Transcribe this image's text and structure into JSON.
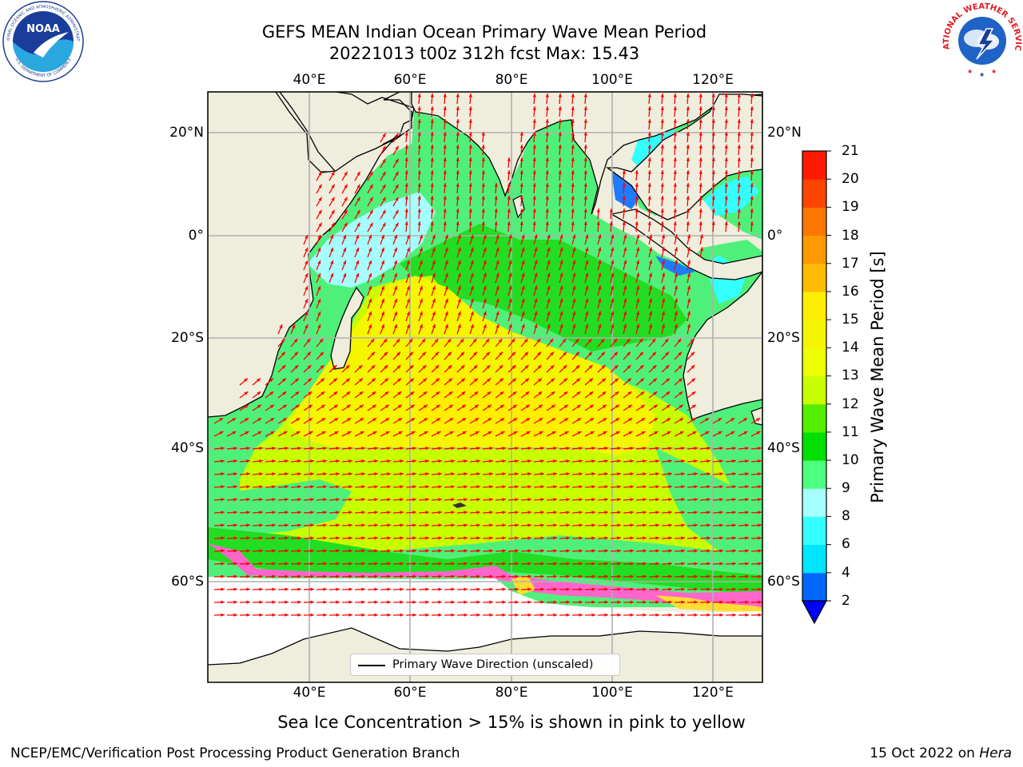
{
  "title": {
    "line1": "GEFS MEAN Indian Ocean Primary Wave Mean Period",
    "line2": "20221013 t00z 312h fcst   Max: 15.43"
  },
  "map": {
    "lon_ticks_top": [
      "40°E",
      "60°E",
      "80°E",
      "100°E",
      "120°E"
    ],
    "lon_ticks_bottom": [
      "40°E",
      "60°E",
      "80°E",
      "100°E",
      "120°E"
    ],
    "lat_ticks_left": [
      "20°N",
      "0°",
      "20°S",
      "40°S",
      "60°S"
    ],
    "lat_ticks_right": [
      "20°N",
      "0°",
      "20°S",
      "40°S",
      "60°S"
    ],
    "lon_values": [
      40,
      60,
      80,
      100,
      120
    ],
    "lat_values": [
      20,
      0,
      -20,
      -40,
      -60
    ],
    "extent_lon": [
      20,
      130
    ],
    "grid": true,
    "legend_label": "Primary Wave Direction (unscaled)",
    "legend_position": "bottom-center",
    "field_max_period_s": 15.43,
    "land_color": "#efeddc",
    "sea_ice_color": "#ff66cc",
    "arrow_color": "#ff0000"
  },
  "colorbar": {
    "label": "Primary Wave Mean Period [s]",
    "ticks": [
      "21",
      "20",
      "19",
      "18",
      "17",
      "16",
      "15",
      "14",
      "13",
      "12",
      "11",
      "10",
      "9",
      "8",
      "6",
      "4",
      "2"
    ],
    "levels": [
      2,
      4,
      6,
      8,
      9,
      10,
      11,
      12,
      13,
      14,
      15,
      16,
      17,
      18,
      19,
      20,
      21
    ],
    "colors": [
      "#0066ff",
      "#00e5ff",
      "#33ffff",
      "#a6ffff",
      "#4dff80",
      "#00e000",
      "#55ee00",
      "#c8ff00",
      "#eeff00",
      "#f5f500",
      "#ffee00",
      "#ffbb00",
      "#ff9900",
      "#ff7700",
      "#ff4400",
      "#ff1a00"
    ],
    "extend_color": "#0000ff"
  },
  "caption": "Sea Ice Concentration > 15% is shown in pink to yellow",
  "footer": {
    "left": "NCEP/EMC/Verification Post Processing Product Generation Branch",
    "right_date": "15 Oct 2022 on ",
    "right_machine": "Hera"
  },
  "logos": {
    "noaa_text": "NOAA",
    "noaa_ring_text": "NATIONAL OCEANIC AND ATMOSPHERIC ADMINISTRATION",
    "noaa_ring_bottom": "U.S. DEPARTMENT OF COMMERCE",
    "nws_ring_text": "NATIONAL WEATHER SERVICE"
  }
}
